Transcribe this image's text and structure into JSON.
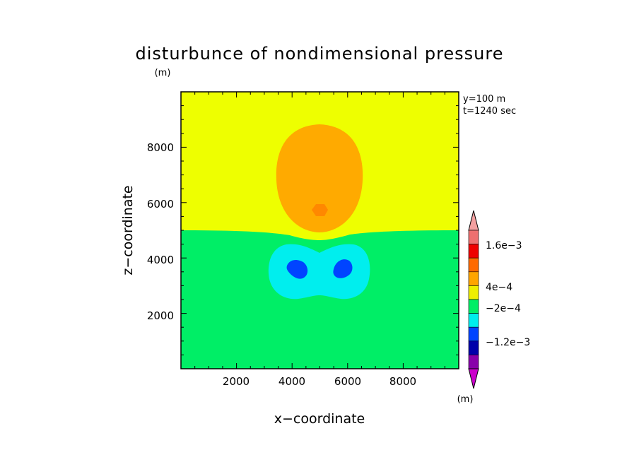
{
  "chart_data": {
    "type": "heatmap",
    "title": "disturbunce of nondimensional pressure",
    "title_unit": "(m)",
    "xlabel": "x−coordinate",
    "ylabel": "z−coordinate",
    "xlim": [
      0,
      10000
    ],
    "ylim": [
      0,
      10000
    ],
    "x_ticks": [
      "2000",
      "4000",
      "6000",
      "8000"
    ],
    "y_ticks": [
      "2000",
      "4000",
      "6000",
      "8000"
    ],
    "annotations": [
      "y=100 m",
      "t=1240 sec"
    ],
    "colorbar": {
      "unit": "(m)",
      "labels": [
        "1.6e−3",
        "4e−4",
        "−2e−4",
        "−1.2e−3"
      ],
      "colors": [
        "#f4a0a0",
        "#ee7070",
        "#ee0000",
        "#ff6a00",
        "#ffa500",
        "#eeee00",
        "#00ee66",
        "#00eeee",
        "#0044ff",
        "#0000aa",
        "#8800aa",
        "#cc00cc"
      ]
    },
    "regions": [
      {
        "name": "background upper",
        "color": "#eeff00"
      },
      {
        "name": "background lower",
        "color": "#00ee66"
      },
      {
        "name": "positive anomaly",
        "color": "#ffaa00"
      },
      {
        "name": "positive core",
        "color": "#ff8800"
      },
      {
        "name": "negative anomaly",
        "color": "#00eeee"
      },
      {
        "name": "negative cores",
        "color": "#0044ff"
      }
    ]
  }
}
